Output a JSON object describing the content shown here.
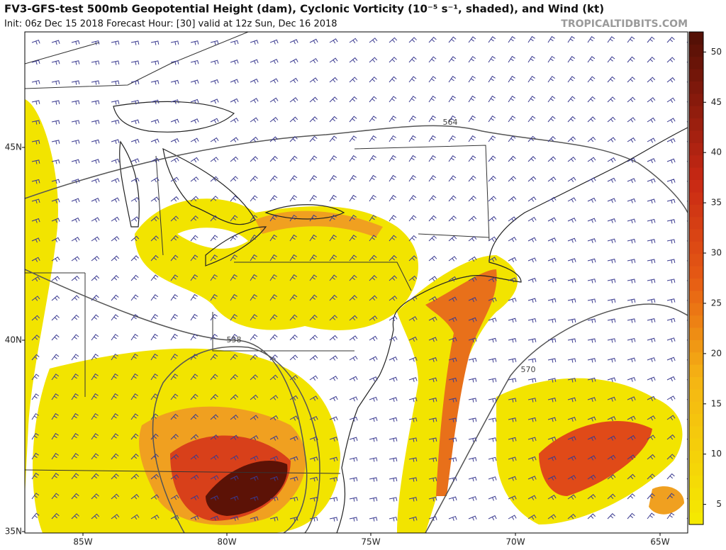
{
  "header": {
    "title": "FV3-GFS-test 500mb Geopotential Height (dam), Cyclonic Vorticity (10⁻⁵ s⁻¹, shaded), and Wind (kt)",
    "subtitle": "Init: 06z Dec 15 2018   Forecast Hour: [30]   valid at 12z Sun, Dec 16 2018",
    "watermark": "TROPICALTIDBITS.COM"
  },
  "map": {
    "lat_labels": [
      "45N",
      "40N",
      "35N"
    ],
    "lon_labels": [
      "85W",
      "80W",
      "75W",
      "70W",
      "65W"
    ],
    "contour_labels": [
      "564",
      "558",
      "570"
    ]
  },
  "colorbar": {
    "lim": [
      3,
      52
    ],
    "ticks": [
      5,
      10,
      15,
      20,
      25,
      30,
      35,
      40,
      45,
      50
    ]
  }
}
